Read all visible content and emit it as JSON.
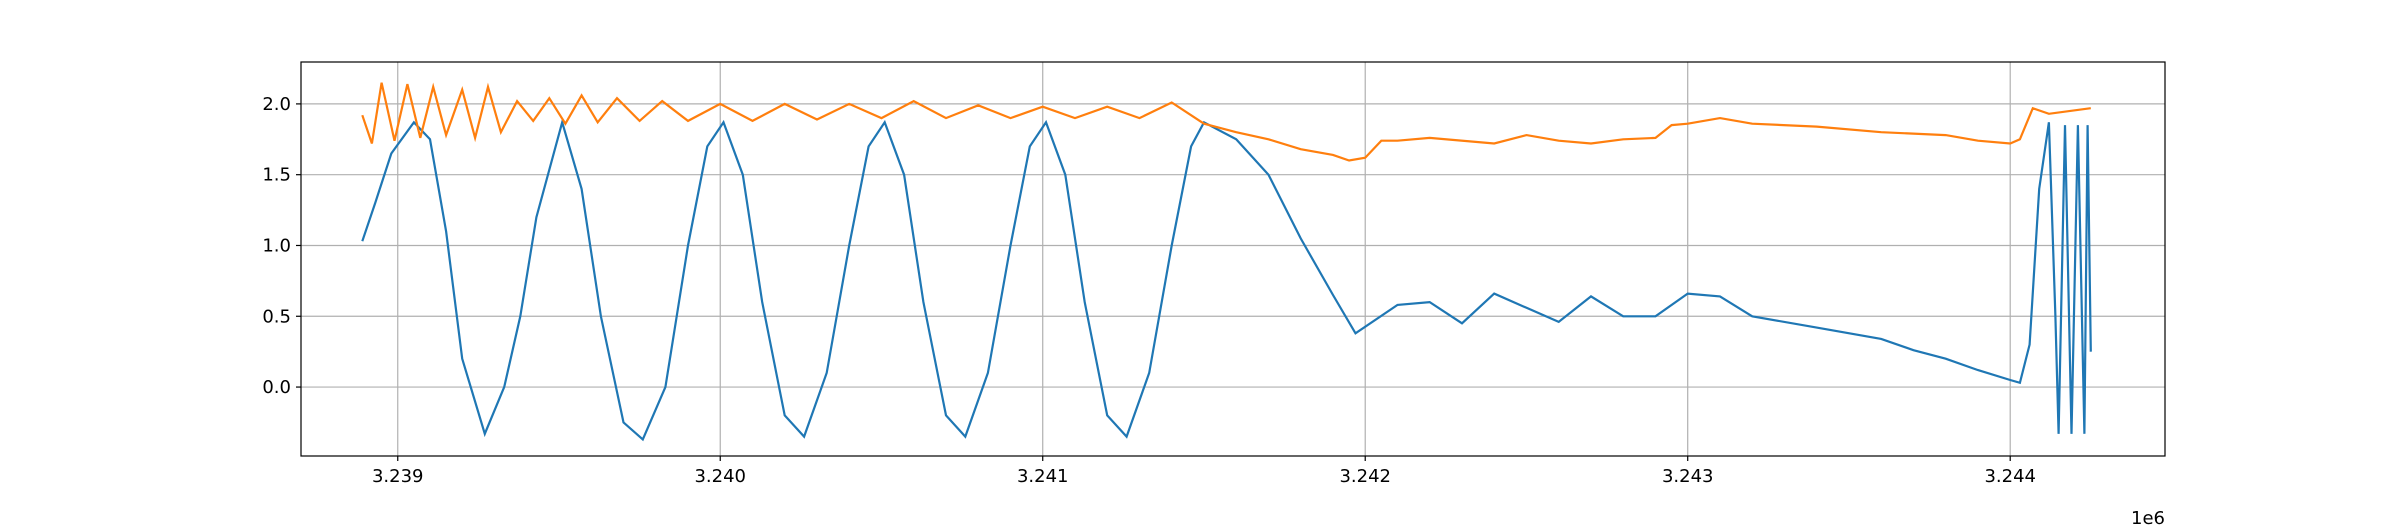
{
  "chart_data": {
    "type": "line",
    "offset_label": "1e6",
    "xlim": [
      3.2387,
      3.24448
    ],
    "xticks": [
      3.239,
      {
        "value": 3.24,
        "label": "3.240"
      },
      3.241,
      3.242,
      3.243,
      3.244
    ],
    "ylim": [
      -0.487,
      2.296
    ],
    "yticks": [
      {
        "value": 0,
        "label": "0.0"
      },
      {
        "value": 0.5,
        "label": "0.5"
      },
      {
        "value": 1,
        "label": "1.0"
      },
      {
        "value": 1.5,
        "label": "1.5"
      },
      {
        "value": 2,
        "label": "2.0"
      }
    ],
    "grid": true,
    "series": [
      {
        "color": "#1f77b4",
        "x": [
          3.23889,
          3.23893,
          3.23898,
          3.23905,
          3.2391,
          3.23915,
          3.2392,
          3.23927,
          3.23933,
          3.23938,
          3.23943,
          3.23951,
          3.23957,
          3.23963,
          3.2397,
          3.23976,
          3.23983,
          3.2399,
          3.23996,
          3.24001,
          3.24007,
          3.24013,
          3.2402,
          3.24026,
          3.24033,
          3.2404,
          3.24046,
          3.24051,
          3.24057,
          3.24063,
          3.2407,
          3.24076,
          3.24083,
          3.2409,
          3.24096,
          3.24101,
          3.24107,
          3.24113,
          3.2412,
          3.24126,
          3.24133,
          3.2414,
          3.24146,
          3.2415,
          3.2416,
          3.2417,
          3.2418,
          3.2419,
          3.24197,
          3.2421,
          3.2422,
          3.2423,
          3.2424,
          3.2425,
          3.2426,
          3.2427,
          3.2428,
          3.2429,
          3.243,
          3.2431,
          3.2432,
          3.2434,
          3.2436,
          3.2437,
          3.2438,
          3.2439,
          3.244,
          3.24403,
          3.24406,
          3.24409,
          3.24412,
          3.24414,
          3.24415,
          3.24417,
          3.24419,
          3.24421,
          3.24423,
          3.24424,
          3.24425
        ],
        "values": [
          1.03,
          1.3,
          1.65,
          1.87,
          1.75,
          1.1,
          0.2,
          -0.33,
          0.0,
          0.5,
          1.2,
          1.87,
          1.4,
          0.5,
          -0.25,
          -0.37,
          0.0,
          1.0,
          1.7,
          1.87,
          1.5,
          0.6,
          -0.2,
          -0.35,
          0.1,
          1.0,
          1.7,
          1.87,
          1.5,
          0.6,
          -0.2,
          -0.35,
          0.1,
          1.0,
          1.7,
          1.87,
          1.5,
          0.6,
          -0.2,
          -0.35,
          0.1,
          1.0,
          1.7,
          1.87,
          1.75,
          1.5,
          1.05,
          0.65,
          0.38,
          0.58,
          0.6,
          0.45,
          0.66,
          0.56,
          0.46,
          0.64,
          0.5,
          0.5,
          0.66,
          0.64,
          0.5,
          0.42,
          0.34,
          0.26,
          0.2,
          0.12,
          0.05,
          0.03,
          0.3,
          1.4,
          1.87,
          0.5,
          -0.33,
          1.85,
          -0.33,
          1.85,
          -0.33,
          1.85,
          0.25
        ]
      },
      {
        "color": "#ff7f0e",
        "x": [
          3.23889,
          3.23892,
          3.23895,
          3.23899,
          3.23903,
          3.23907,
          3.23911,
          3.23915,
          3.2392,
          3.23924,
          3.23928,
          3.23932,
          3.23937,
          3.23942,
          3.23947,
          3.23952,
          3.23957,
          3.23962,
          3.23968,
          3.23975,
          3.23982,
          3.2399,
          3.24,
          3.2401,
          3.2402,
          3.2403,
          3.2404,
          3.2405,
          3.2406,
          3.2407,
          3.2408,
          3.2409,
          3.241,
          3.2411,
          3.2412,
          3.2413,
          3.2414,
          3.2415,
          3.2416,
          3.2417,
          3.2418,
          3.2419,
          3.24195,
          3.242,
          3.24205,
          3.2421,
          3.2422,
          3.2424,
          3.2425,
          3.2426,
          3.2427,
          3.2428,
          3.2429,
          3.24295,
          3.243,
          3.2431,
          3.2432,
          3.2434,
          3.2436,
          3.2438,
          3.2439,
          3.244,
          3.24403,
          3.24407,
          3.24412,
          3.24425
        ],
        "values": [
          1.92,
          1.72,
          2.15,
          1.74,
          2.14,
          1.76,
          2.12,
          1.78,
          2.1,
          1.76,
          2.12,
          1.8,
          2.02,
          1.88,
          2.04,
          1.86,
          2.06,
          1.87,
          2.04,
          1.88,
          2.02,
          1.88,
          2.0,
          1.88,
          2.0,
          1.89,
          2.0,
          1.9,
          2.02,
          1.9,
          1.99,
          1.9,
          1.98,
          1.9,
          1.98,
          1.9,
          2.01,
          1.86,
          1.8,
          1.75,
          1.68,
          1.64,
          1.6,
          1.62,
          1.74,
          1.74,
          1.76,
          1.72,
          1.78,
          1.74,
          1.72,
          1.75,
          1.76,
          1.85,
          1.86,
          1.9,
          1.86,
          1.84,
          1.8,
          1.78,
          1.74,
          1.72,
          1.75,
          1.97,
          1.93,
          1.97
        ]
      }
    ]
  }
}
